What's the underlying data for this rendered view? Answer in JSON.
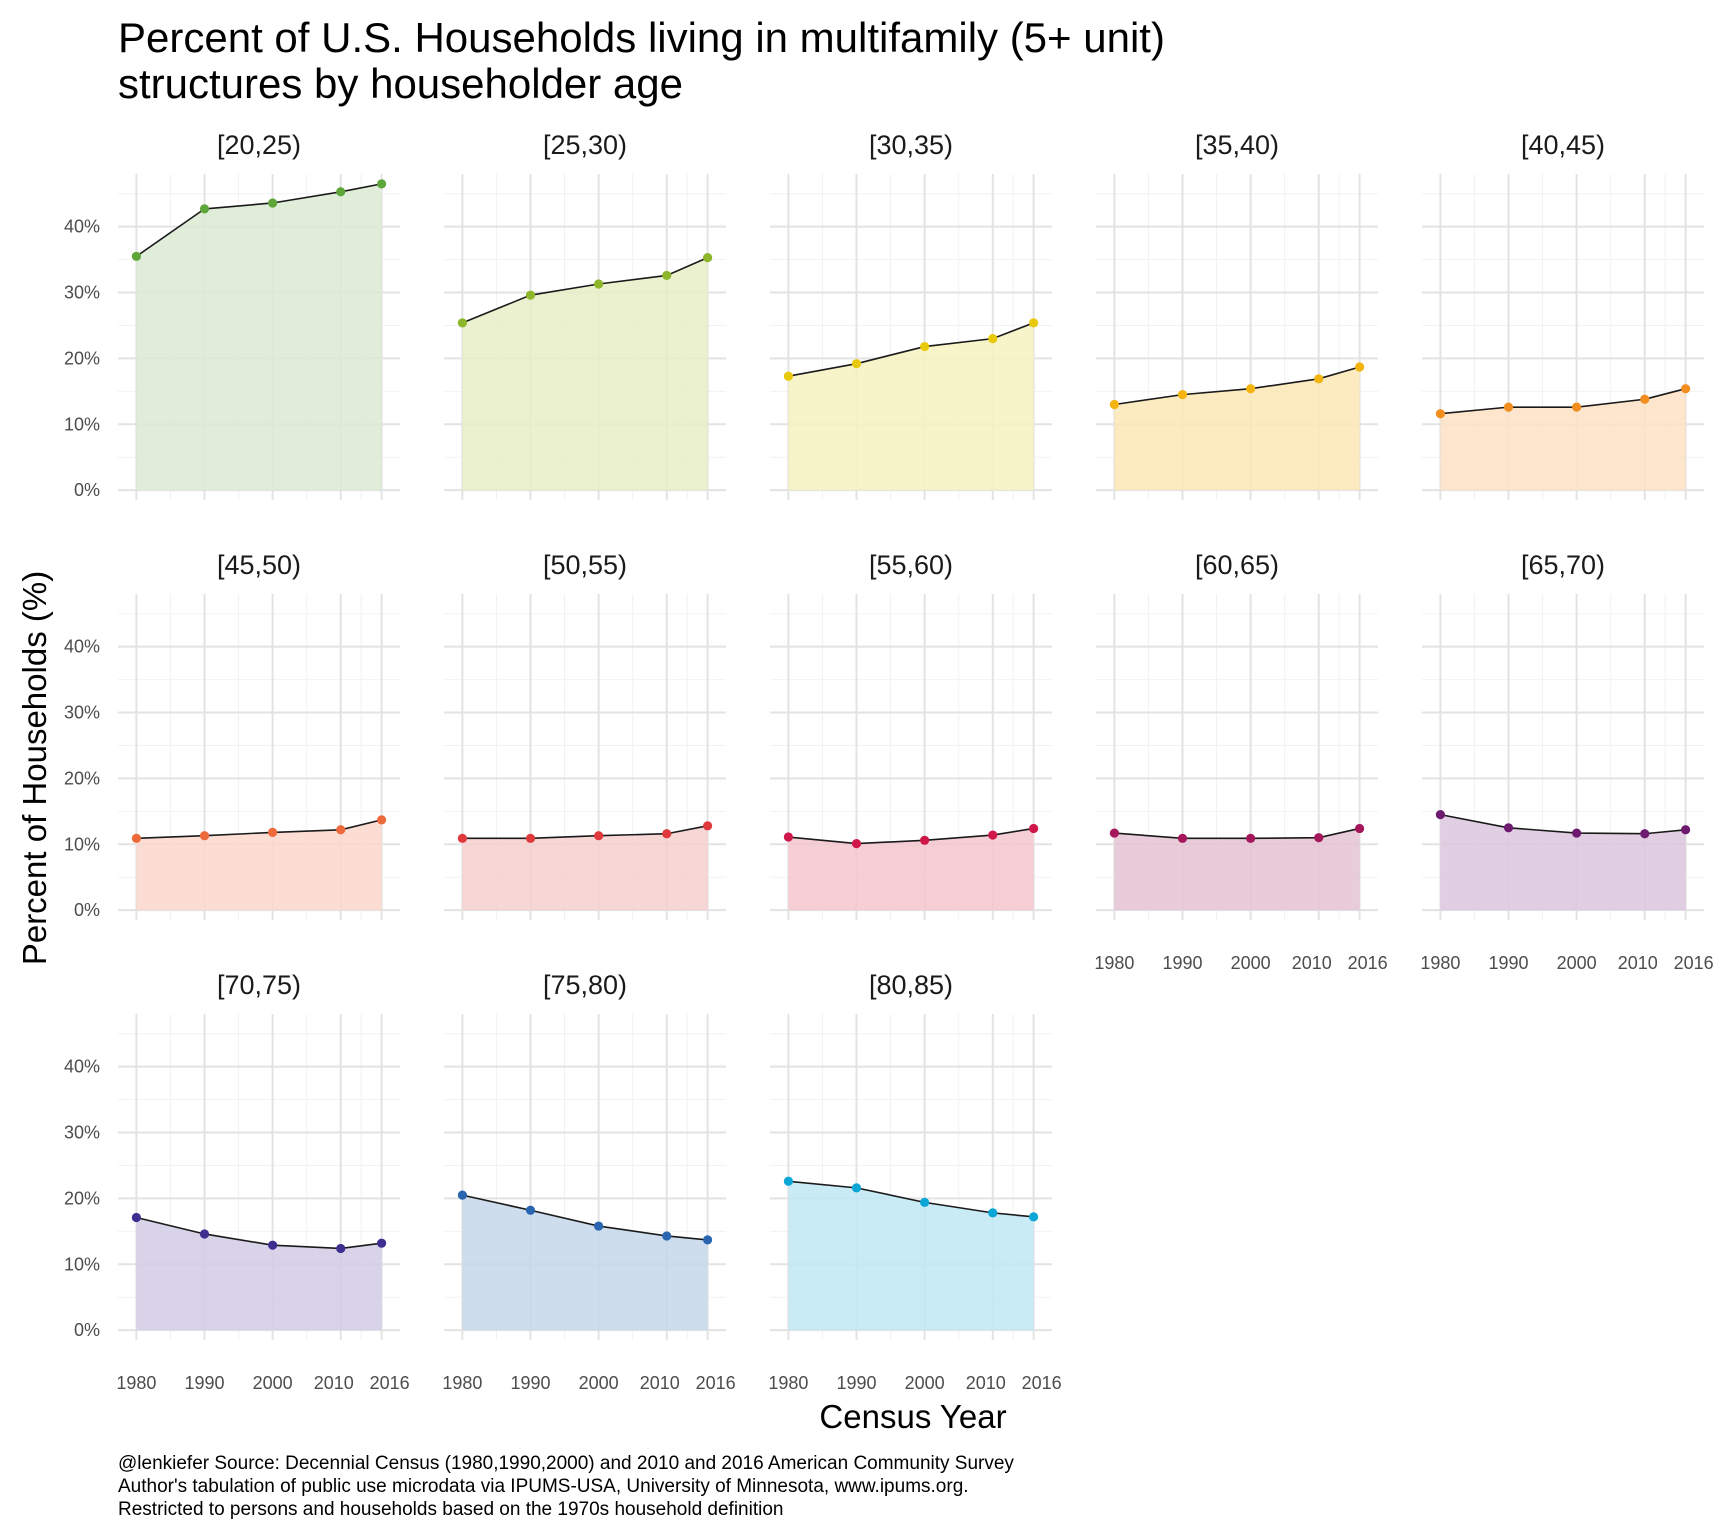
{
  "chart_data": {
    "type": "area",
    "title": [
      "Percent of U.S. Households living in multifamily (5+ unit)",
      "structures by householder age"
    ],
    "xlabel": "Census Year",
    "ylabel": "Percent of Households (%)",
    "x": [
      1980,
      1990,
      2000,
      2010,
      2016
    ],
    "x_tick_labels": [
      "1980",
      "1990",
      "2000",
      "2010",
      "2016"
    ],
    "y_ticks": [
      0,
      10,
      20,
      30,
      40
    ],
    "y_tick_labels": [
      "0%",
      "10%",
      "20%",
      "30%",
      "40%"
    ],
    "ylim": [
      0,
      48
    ],
    "grid": true,
    "legend": "none",
    "facets": [
      {
        "name": "[20,25)",
        "color": "#5ea63a",
        "fill": "#d9ead2",
        "values": [
          35.5,
          42.7,
          43.6,
          45.3,
          46.5
        ]
      },
      {
        "name": "[25,30)",
        "color": "#8db62a",
        "fill": "#e7efc7",
        "values": [
          25.4,
          29.6,
          31.3,
          32.6,
          35.3
        ]
      },
      {
        "name": "[30,35)",
        "color": "#e8c90c",
        "fill": "#f6f2bf",
        "values": [
          17.3,
          19.2,
          21.8,
          23.0,
          25.4
        ]
      },
      {
        "name": "[35,40)",
        "color": "#f3b410",
        "fill": "#fbe8b5",
        "values": [
          13.0,
          14.5,
          15.4,
          16.9,
          18.7
        ]
      },
      {
        "name": "[40,45)",
        "color": "#f28d20",
        "fill": "#fde2c4",
        "values": [
          11.6,
          12.6,
          12.6,
          13.8,
          15.4
        ]
      },
      {
        "name": "[45,50)",
        "color": "#ed6a3a",
        "fill": "#fad7cb",
        "values": [
          10.9,
          11.3,
          11.8,
          12.2,
          13.7
        ]
      },
      {
        "name": "[50,55)",
        "color": "#e0393b",
        "fill": "#f6cfcf",
        "values": [
          10.9,
          10.9,
          11.3,
          11.6,
          12.8
        ]
      },
      {
        "name": "[55,60)",
        "color": "#d0174a",
        "fill": "#f3c6cf",
        "values": [
          11.1,
          10.1,
          10.6,
          11.4,
          12.4
        ]
      },
      {
        "name": "[60,65)",
        "color": "#a5165b",
        "fill": "#e5c3d3",
        "values": [
          11.7,
          10.9,
          10.9,
          11.0,
          12.4
        ]
      },
      {
        "name": "[65,70)",
        "color": "#6e1a6f",
        "fill": "#ddc6de",
        "values": [
          14.5,
          12.5,
          11.7,
          11.6,
          12.2
        ]
      },
      {
        "name": "[70,75)",
        "color": "#3e2e8f",
        "fill": "#d1cbe5",
        "values": [
          17.1,
          14.6,
          12.9,
          12.4,
          13.2
        ]
      },
      {
        "name": "[75,80)",
        "color": "#2a66b0",
        "fill": "#c6d7ea",
        "values": [
          20.5,
          18.2,
          15.8,
          14.3,
          13.7
        ]
      },
      {
        "name": "[80,85)",
        "color": "#0aa6d6",
        "fill": "#bfe7f5",
        "values": [
          22.6,
          21.6,
          19.4,
          17.8,
          17.2
        ]
      }
    ]
  },
  "caption": [
    "@lenkiefer Source: Decennial Census (1980,1990,2000) and 2010 and 2016 American Community Survey",
    "Author's tabulation of public use microdata via IPUMS-USA, University of Minnesota, www.ipums.org.",
    "Restricted to persons and households based on the 1970s household definition"
  ]
}
